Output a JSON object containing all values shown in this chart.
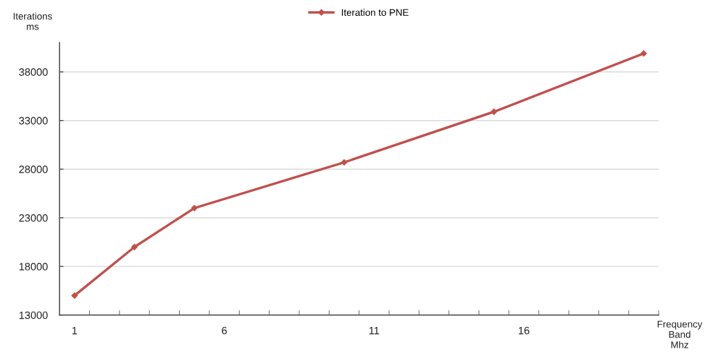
{
  "chart_data": {
    "type": "line",
    "xlabel": "Frequency\nBand\nMhz",
    "ylabel": "Iterations\nms",
    "x": [
      1,
      3,
      5,
      10,
      15,
      20
    ],
    "series": [
      {
        "name": "Iteration to PNE",
        "color": "#c0504d",
        "values": [
          15000,
          20000,
          24000,
          28700,
          33900,
          39900
        ]
      }
    ],
    "xlim": [
      0.5,
      20.5
    ],
    "xticks": [
      1,
      6,
      11,
      16,
      {
        "value": 1.5,
        "label": null
      },
      {
        "value": 2.5,
        "label": null
      },
      {
        "value": 3.5,
        "label": null
      },
      {
        "value": 4.5,
        "label": null
      },
      {
        "value": 5.5,
        "label": null
      },
      {
        "value": 6.5,
        "label": null
      },
      {
        "value": 7.5,
        "label": null
      },
      {
        "value": 8.5,
        "label": null
      },
      {
        "value": 9.5,
        "label": null
      },
      {
        "value": 10.5,
        "label": null
      },
      {
        "value": 11.5,
        "label": null
      },
      {
        "value": 12.5,
        "label": null
      },
      {
        "value": 13.5,
        "label": null
      },
      {
        "value": 14.5,
        "label": null
      },
      {
        "value": 15.5,
        "label": null
      },
      {
        "value": 16.5,
        "label": null
      },
      {
        "value": 17.5,
        "label": null
      },
      {
        "value": 18.5,
        "label": null
      },
      {
        "value": 19.5,
        "label": null
      },
      {
        "value": 20.5,
        "label": null
      }
    ],
    "ylim": [
      13000,
      41000
    ],
    "yticks": [
      13000,
      18000,
      23000,
      28000,
      33000,
      38000
    ],
    "grid": "y",
    "legend": "top",
    "marker": "diamond",
    "line_style": "solid"
  }
}
